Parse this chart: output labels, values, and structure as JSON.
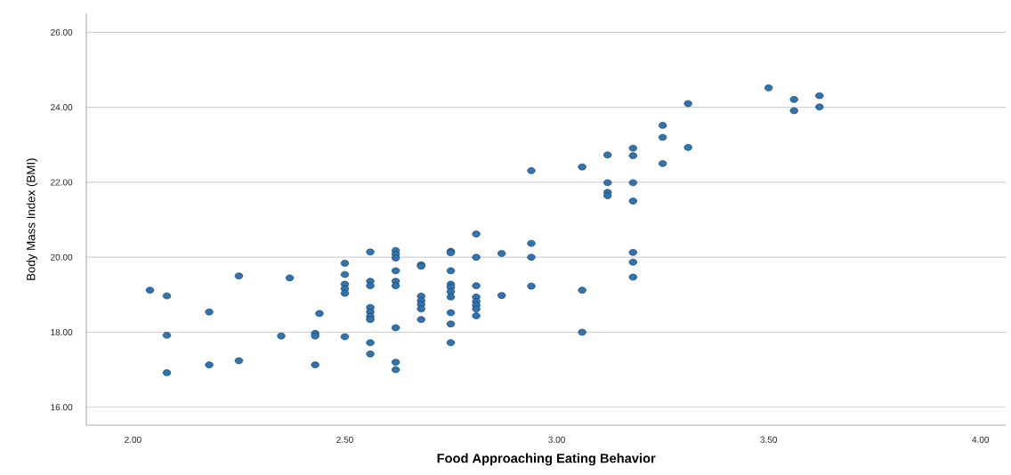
{
  "chart_data": {
    "type": "scatter",
    "xlabel": "Food Approaching Eating Behavior",
    "ylabel": "Body Mass Index (BMI)",
    "x": [
      2.04,
      2.08,
      2.08,
      2.08,
      2.18,
      2.18,
      2.25,
      2.25,
      2.35,
      2.37,
      2.43,
      2.43,
      2.43,
      2.44,
      2.5,
      2.5,
      2.5,
      2.5,
      2.5,
      2.5,
      2.56,
      2.56,
      2.56,
      2.56,
      2.56,
      2.56,
      2.56,
      2.56,
      2.56,
      2.62,
      2.62,
      2.62,
      2.62,
      2.62,
      2.62,
      2.62,
      2.62,
      2.62,
      2.68,
      2.68,
      2.68,
      2.68,
      2.68,
      2.68,
      2.68,
      2.75,
      2.75,
      2.75,
      2.75,
      2.75,
      2.75,
      2.75,
      2.75,
      2.75,
      2.75,
      2.81,
      2.81,
      2.81,
      2.81,
      2.81,
      2.81,
      2.81,
      2.81,
      2.87,
      2.87,
      2.94,
      2.94,
      2.94,
      2.94,
      3.06,
      3.06,
      3.06,
      3.12,
      3.12,
      3.12,
      3.12,
      3.18,
      3.18,
      3.18,
      3.18,
      3.18,
      3.18,
      3.18,
      3.25,
      3.25,
      3.25,
      3.31,
      3.31,
      3.5,
      3.56,
      3.56,
      3.62,
      3.62
    ],
    "values": [
      19.12,
      18.97,
      17.92,
      16.92,
      18.54,
      17.13,
      19.5,
      17.24,
      17.9,
      19.45,
      17.97,
      17.9,
      17.13,
      18.5,
      19.84,
      19.54,
      19.28,
      19.16,
      19.04,
      17.88,
      20.14,
      19.36,
      19.24,
      18.66,
      18.54,
      18.42,
      18.34,
      17.72,
      17.42,
      20.18,
      20.08,
      19.98,
      19.64,
      19.36,
      19.24,
      18.12,
      17.2,
      17.0,
      19.8,
      19.76,
      18.96,
      18.84,
      18.74,
      18.62,
      18.34,
      20.16,
      20.12,
      19.64,
      19.28,
      19.2,
      19.08,
      18.94,
      18.52,
      18.22,
      17.72,
      20.62,
      20.0,
      19.24,
      18.94,
      18.82,
      18.72,
      18.62,
      18.44,
      20.1,
      18.98,
      22.31,
      20.37,
      20.0,
      19.23,
      22.41,
      19.12,
      18.0,
      22.73,
      21.99,
      21.73,
      21.64,
      22.91,
      22.71,
      21.99,
      21.5,
      20.13,
      19.87,
      19.47,
      23.52,
      23.2,
      22.5,
      24.1,
      22.93,
      24.52,
      24.21,
      23.91,
      24.31,
      24.01
    ],
    "color": "#2f74b0",
    "marker": "circle",
    "grid": "y",
    "xlim": [
      1.89,
      4.06
    ],
    "ylim": [
      15.52,
      26.5
    ],
    "xticks": [
      {
        "value": 2,
        "label": "2.00"
      },
      {
        "value": 2.5,
        "label": "2.50"
      },
      {
        "value": 3,
        "label": "3.00"
      },
      {
        "value": 3.5,
        "label": "3.50"
      },
      {
        "value": 4,
        "label": "4.00"
      }
    ],
    "yticks": [
      {
        "value": 16,
        "label": "16.00"
      },
      {
        "value": 18,
        "label": "18.00"
      },
      {
        "value": 20,
        "label": "20.00"
      },
      {
        "value": 22,
        "label": "22.00"
      },
      {
        "value": 24,
        "label": "24.00"
      },
      {
        "value": 26,
        "label": "26.00"
      }
    ]
  }
}
